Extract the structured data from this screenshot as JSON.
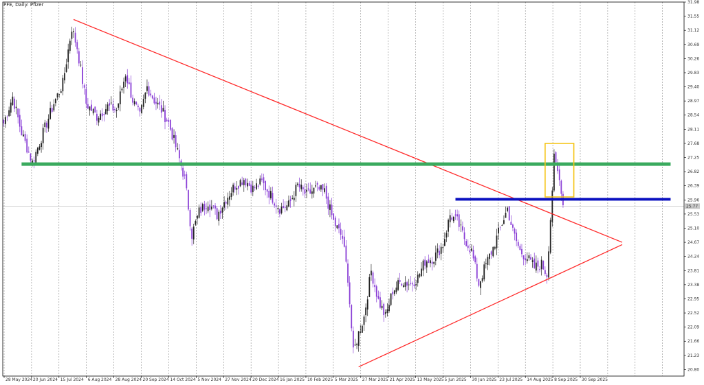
{
  "chart_data": {
    "type": "candlestick",
    "title": "PFE, Daily: Pfizer",
    "grid": true,
    "ylim": [
      20.6,
      31.98
    ],
    "y_ticks": [
      "31.98",
      "31.55",
      "31.12",
      "30.69",
      "30.26",
      "29.83",
      "29.40",
      "28.97",
      "28.54",
      "28.11",
      "27.68",
      "27.25",
      "26.82",
      "26.39",
      "25.96",
      "25.53",
      "25.10",
      "24.67",
      "24.24",
      "23.81",
      "23.38",
      "22.95",
      "22.52",
      "22.09",
      "21.66",
      "21.23",
      "20.80"
    ],
    "x_ticks": [
      "28 May 2024",
      "20 Jun 2024",
      "15 Jul 2024",
      "6 Aug 2024",
      "28 Aug 2024",
      "20 Sep 2024",
      "14 Oct 2024",
      "5 Nov 2024",
      "27 Nov 2024",
      "20 Dec 2024",
      "16 Jan 2025",
      "10 Feb 2025",
      "5 Mar 2025",
      "27 Mar 2025",
      "21 Apr 2025",
      "13 May 2025",
      "5 Jun 2025",
      "30 Jun 2025",
      "23 Jul 2025",
      "14 Aug 2025",
      "8 Sep 2025",
      "30 Sep 2025"
    ],
    "current_price_label": "25.77",
    "current_price": 25.77,
    "waypoints": [
      {
        "i": 0,
        "p": 28.3
      },
      {
        "i": 5,
        "p": 29.1
      },
      {
        "i": 10,
        "p": 28.0
      },
      {
        "i": 16,
        "p": 27.1
      },
      {
        "i": 22,
        "p": 28.0
      },
      {
        "i": 28,
        "p": 28.9
      },
      {
        "i": 33,
        "p": 29.5
      },
      {
        "i": 38,
        "p": 31.2
      },
      {
        "i": 41,
        "p": 30.6
      },
      {
        "i": 46,
        "p": 28.9
      },
      {
        "i": 52,
        "p": 28.5
      },
      {
        "i": 58,
        "p": 28.8
      },
      {
        "i": 63,
        "p": 28.7
      },
      {
        "i": 68,
        "p": 29.8
      },
      {
        "i": 72,
        "p": 29.0
      },
      {
        "i": 76,
        "p": 28.5
      },
      {
        "i": 80,
        "p": 29.4
      },
      {
        "i": 84,
        "p": 29.0
      },
      {
        "i": 88,
        "p": 28.7
      },
      {
        "i": 92,
        "p": 28.3
      },
      {
        "i": 97,
        "p": 27.4
      },
      {
        "i": 101,
        "p": 26.6
      },
      {
        "i": 105,
        "p": 24.9
      },
      {
        "i": 109,
        "p": 25.6
      },
      {
        "i": 114,
        "p": 25.9
      },
      {
        "i": 119,
        "p": 25.5
      },
      {
        "i": 124,
        "p": 26.0
      },
      {
        "i": 129,
        "p": 26.4
      },
      {
        "i": 134,
        "p": 26.6
      },
      {
        "i": 139,
        "p": 26.3
      },
      {
        "i": 144,
        "p": 26.5
      },
      {
        "i": 149,
        "p": 26.1
      },
      {
        "i": 154,
        "p": 25.7
      },
      {
        "i": 159,
        "p": 25.8
      },
      {
        "i": 164,
        "p": 26.4
      },
      {
        "i": 169,
        "p": 26.1
      },
      {
        "i": 174,
        "p": 26.3
      },
      {
        "i": 179,
        "p": 26.2
      },
      {
        "i": 184,
        "p": 25.3
      },
      {
        "i": 189,
        "p": 24.8
      },
      {
        "i": 192,
        "p": 23.6
      },
      {
        "i": 195,
        "p": 21.3
      },
      {
        "i": 198,
        "p": 21.9
      },
      {
        "i": 201,
        "p": 22.4
      },
      {
        "i": 205,
        "p": 23.8
      },
      {
        "i": 209,
        "p": 22.9
      },
      {
        "i": 213,
        "p": 22.4
      },
      {
        "i": 217,
        "p": 23.2
      },
      {
        "i": 222,
        "p": 23.5
      },
      {
        "i": 227,
        "p": 23.4
      },
      {
        "i": 231,
        "p": 23.6
      },
      {
        "i": 235,
        "p": 24.1
      },
      {
        "i": 240,
        "p": 24.2
      },
      {
        "i": 245,
        "p": 24.6
      },
      {
        "i": 249,
        "p": 25.5
      },
      {
        "i": 253,
        "p": 25.3
      },
      {
        "i": 257,
        "p": 24.8
      },
      {
        "i": 261,
        "p": 24.4
      },
      {
        "i": 265,
        "p": 23.4
      },
      {
        "i": 269,
        "p": 24.0
      },
      {
        "i": 273,
        "p": 24.5
      },
      {
        "i": 277,
        "p": 25.1
      },
      {
        "i": 281,
        "p": 25.7
      },
      {
        "i": 284,
        "p": 25.0
      },
      {
        "i": 288,
        "p": 24.4
      },
      {
        "i": 292,
        "p": 24.2
      },
      {
        "i": 296,
        "p": 23.9
      },
      {
        "i": 300,
        "p": 24.0
      },
      {
        "i": 303,
        "p": 23.7
      },
      {
        "i": 305,
        "p": 25.4
      },
      {
        "i": 307,
        "p": 27.2
      },
      {
        "i": 309,
        "p": 26.8
      },
      {
        "i": 311,
        "p": 26.3
      },
      {
        "i": 312,
        "p": 25.8
      }
    ],
    "annotations": [
      {
        "name": "upper-trendline",
        "type": "line",
        "color": "#ff2a2a",
        "from": {
          "date_index": 39,
          "price": 31.45
        },
        "to": {
          "date_index": 345,
          "price": 24.67
        }
      },
      {
        "name": "lower-trendline",
        "type": "line",
        "color": "#ff2a2a",
        "from": {
          "date_index": 198,
          "price": 20.88
        },
        "to": {
          "date_index": 345,
          "price": 24.6
        }
      },
      {
        "name": "green-support-line",
        "type": "horizontal",
        "color": "#3aaa5e",
        "price": 27.05,
        "from_index": 10,
        "to_index": 372
      },
      {
        "name": "blue-resistance-line",
        "type": "horizontal",
        "color": "#0a10c0",
        "price": 25.98,
        "from_index": 252,
        "to_index": 372
      },
      {
        "name": "yellow-highlight-box",
        "type": "box",
        "color": "#f5c518",
        "from_index": 302,
        "to_index": 318,
        "top_price": 27.68,
        "bottom_price": 26.05
      }
    ],
    "colors": {
      "bull": "#222222",
      "bear": "#8a3fd6",
      "grid": "#000000",
      "axis": "#000000",
      "current_price_line": "#bbbbbb"
    }
  }
}
